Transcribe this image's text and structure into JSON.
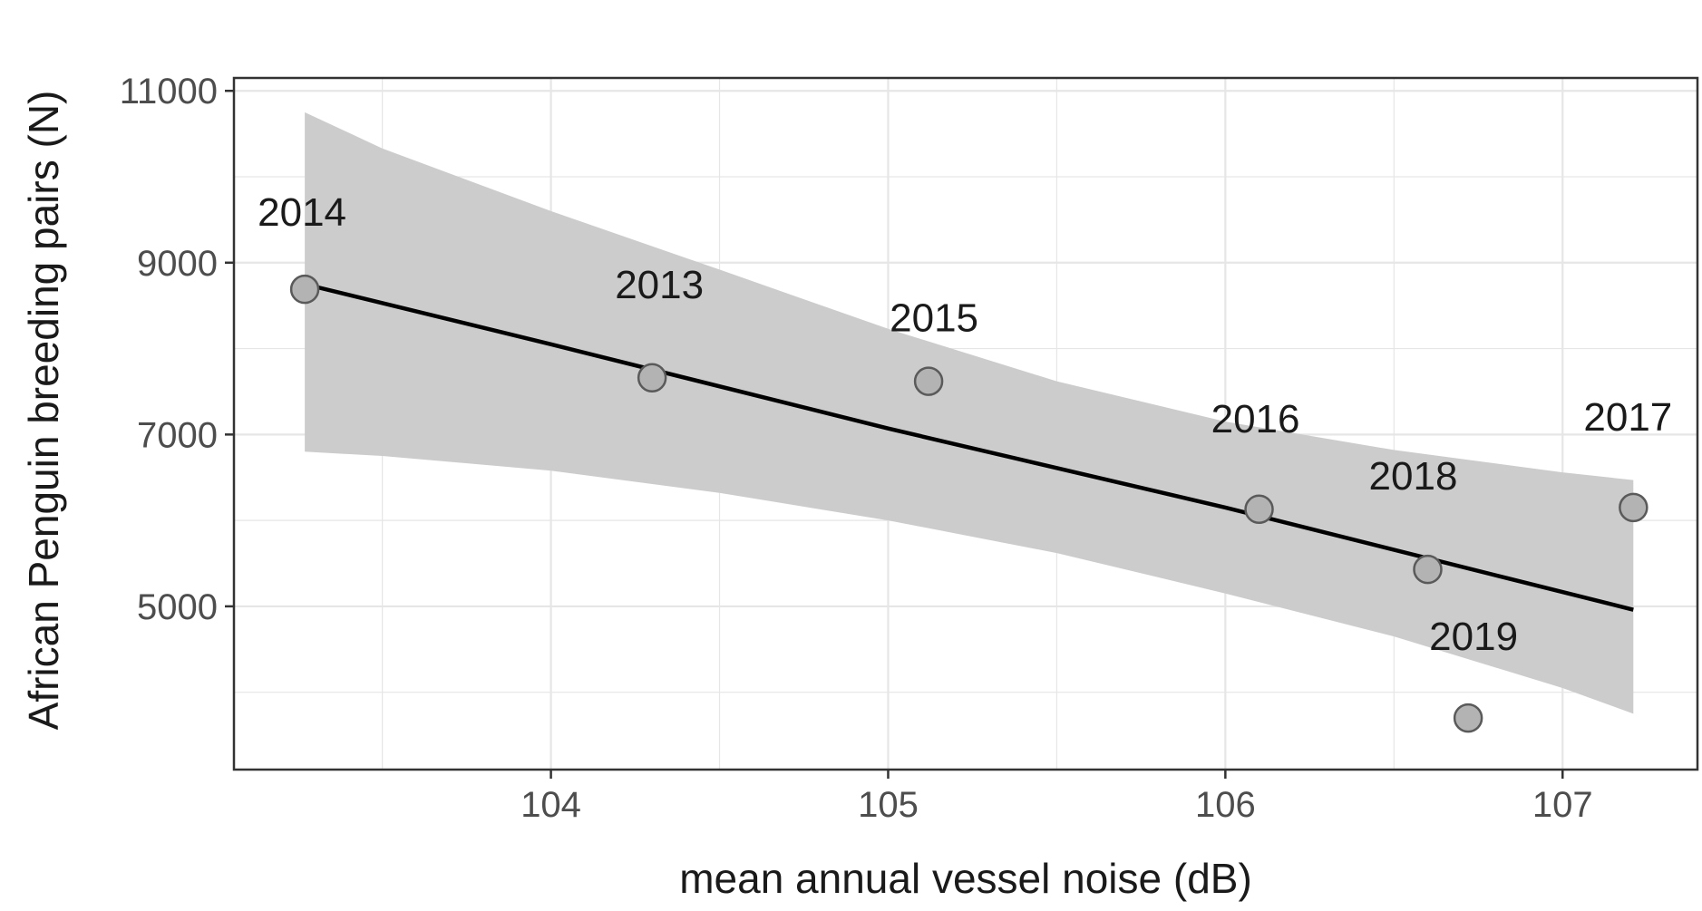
{
  "chart_data": {
    "type": "scatter",
    "title": "",
    "xlabel": "mean annual vessel noise (dB)",
    "ylabel": "African Penguin breeding pairs (N)",
    "xlim": [
      103.06,
      107.4
    ],
    "ylim": [
      3100,
      11150
    ],
    "x_ticks": [
      104,
      105,
      106,
      107
    ],
    "x_tick_labels": [
      "104",
      "105",
      "106",
      "107"
    ],
    "y_ticks": [
      5000,
      7000,
      9000,
      11000
    ],
    "y_tick_labels": [
      "5000",
      "7000",
      "9000",
      "11000"
    ],
    "grid": true,
    "legend": "none",
    "points": [
      {
        "label": "2014",
        "x": 103.27,
        "y": 8690
      },
      {
        "label": "2013",
        "x": 104.3,
        "y": 7660
      },
      {
        "label": "2015",
        "x": 105.12,
        "y": 7620
      },
      {
        "label": "2016",
        "x": 106.1,
        "y": 6130
      },
      {
        "label": "2018",
        "x": 106.6,
        "y": 5430
      },
      {
        "label": "2019",
        "x": 106.72,
        "y": 3700
      },
      {
        "label": "2017",
        "x": 107.21,
        "y": 6150
      }
    ],
    "trend_line": {
      "x": [
        103.27,
        104.0,
        105.0,
        106.0,
        107.21
      ],
      "y": [
        8750,
        8050,
        7070,
        6150,
        4960
      ]
    },
    "confidence_band": {
      "x": [
        103.27,
        103.5,
        104.0,
        104.5,
        105.0,
        105.5,
        106.0,
        106.5,
        107.0,
        107.21
      ],
      "lower": [
        6800,
        6750,
        6580,
        6320,
        6000,
        5620,
        5150,
        4650,
        4050,
        3750
      ],
      "upper": [
        10750,
        10330,
        9600,
        8920,
        8230,
        7620,
        7150,
        6820,
        6560,
        6470
      ]
    },
    "colors": {
      "point_fill": "#b3b3b3",
      "point_stroke": "#5a5a5a",
      "band": "#cccccc",
      "line": "#000000",
      "grid": "#e6e6e6",
      "panel_border": "#333333"
    }
  }
}
